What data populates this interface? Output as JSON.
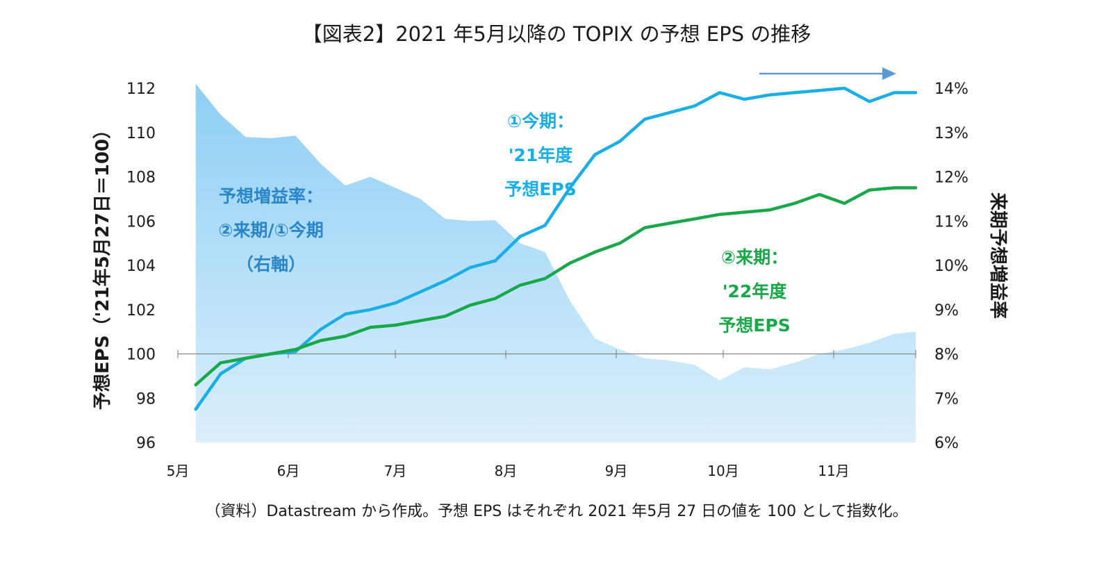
{
  "title": "【図表2】2021 年5月以降の TOPIX の予想 EPS の推移",
  "note": "（資料）Datastream から作成。予想 EPS はそれぞれ 2021 年5月 27 日の値を 100 として指数化。",
  "colors": {
    "current_eps": "#1aaee6",
    "next_eps": "#18a84a",
    "growth_area_top": "#8ecff5",
    "growth_area_bottom": "#dbeffc",
    "growth_text": "#2a86c8",
    "arrow": "#5b9bd5",
    "baseline": "#8a8a8a"
  },
  "chart_data": {
    "type": "line",
    "title": "【図表2】2021 年5月以降の TOPIX の予想 EPS の推移",
    "ylabel_left": "予想EPS（'21年5月27日＝100）",
    "ylabel_right": "来期予想増益率",
    "ylim_left": [
      96,
      112
    ],
    "ylim_right": [
      6,
      14
    ],
    "left_ticks": [
      "96",
      "98",
      "100",
      "102",
      "104",
      "106",
      "108",
      "110",
      "112"
    ],
    "right_ticks": [
      "6%",
      "7%",
      "8%",
      "9%",
      "10%",
      "11%",
      "12%",
      "13%",
      "14%"
    ],
    "x_ticks": [
      "5月",
      "6月",
      "7月",
      "8月",
      "9月",
      "10月",
      "11月"
    ],
    "x_start": "2021-05-01",
    "x_end": "2021-11-24",
    "x_tick_dates": [
      "2021-05-01",
      "2021-06-01",
      "2021-07-01",
      "2021-08-01",
      "2021-09-01",
      "2021-10-01",
      "2021-11-01"
    ],
    "baseline_value": 100,
    "dates": [
      "2021-05-06",
      "2021-05-13",
      "2021-05-20",
      "2021-05-27",
      "2021-06-03",
      "2021-06-10",
      "2021-06-17",
      "2021-06-24",
      "2021-07-01",
      "2021-07-08",
      "2021-07-15",
      "2021-07-22",
      "2021-07-29",
      "2021-08-05",
      "2021-08-12",
      "2021-08-19",
      "2021-08-26",
      "2021-09-02",
      "2021-09-09",
      "2021-09-16",
      "2021-09-23",
      "2021-09-30",
      "2021-10-07",
      "2021-10-14",
      "2021-10-21",
      "2021-10-28",
      "2021-11-04",
      "2021-11-11",
      "2021-11-18",
      "2021-11-24"
    ],
    "series": [
      {
        "name": "②来期/①今期",
        "axis": "right",
        "style": "area",
        "values": [
          14.1,
          13.4,
          12.9,
          12.87,
          12.93,
          12.3,
          11.8,
          12.0,
          11.75,
          11.5,
          11.05,
          11.0,
          11.02,
          10.5,
          10.3,
          9.2,
          8.35,
          8.1,
          7.9,
          7.85,
          7.75,
          7.4,
          7.7,
          7.65,
          7.8,
          8.0,
          8.1,
          8.25,
          8.45,
          8.5
        ]
      },
      {
        "name": "①今期：'21年度予想EPS",
        "axis": "left",
        "style": "line",
        "values": [
          97.5,
          99.1,
          99.8,
          100.0,
          100.1,
          101.1,
          101.8,
          102.0,
          102.3,
          102.8,
          103.3,
          103.9,
          104.2,
          105.3,
          105.8,
          107.5,
          109.0,
          109.6,
          110.6,
          110.9,
          111.2,
          111.8,
          111.5,
          111.7,
          111.8,
          111.9,
          112.0,
          111.4,
          111.8,
          111.8
        ]
      },
      {
        "name": "②来期：'22年度予想EPS",
        "axis": "left",
        "style": "line",
        "values": [
          98.6,
          99.6,
          99.8,
          100.0,
          100.2,
          100.6,
          100.8,
          101.2,
          101.3,
          101.5,
          101.7,
          102.2,
          102.5,
          103.1,
          103.4,
          104.1,
          104.6,
          105.0,
          105.7,
          105.9,
          106.1,
          106.3,
          106.4,
          106.5,
          106.8,
          107.2,
          106.8,
          107.4,
          107.5,
          107.5
        ]
      }
    ],
    "annotations": {
      "growth_label": [
        "予想増益率：",
        "②来期/①今期",
        "（右軸）"
      ],
      "current_label": [
        "①今期：",
        "'21年度",
        "予想EPS"
      ],
      "next_label": [
        "②来期：",
        "'22年度",
        "予想EPS"
      ]
    }
  }
}
